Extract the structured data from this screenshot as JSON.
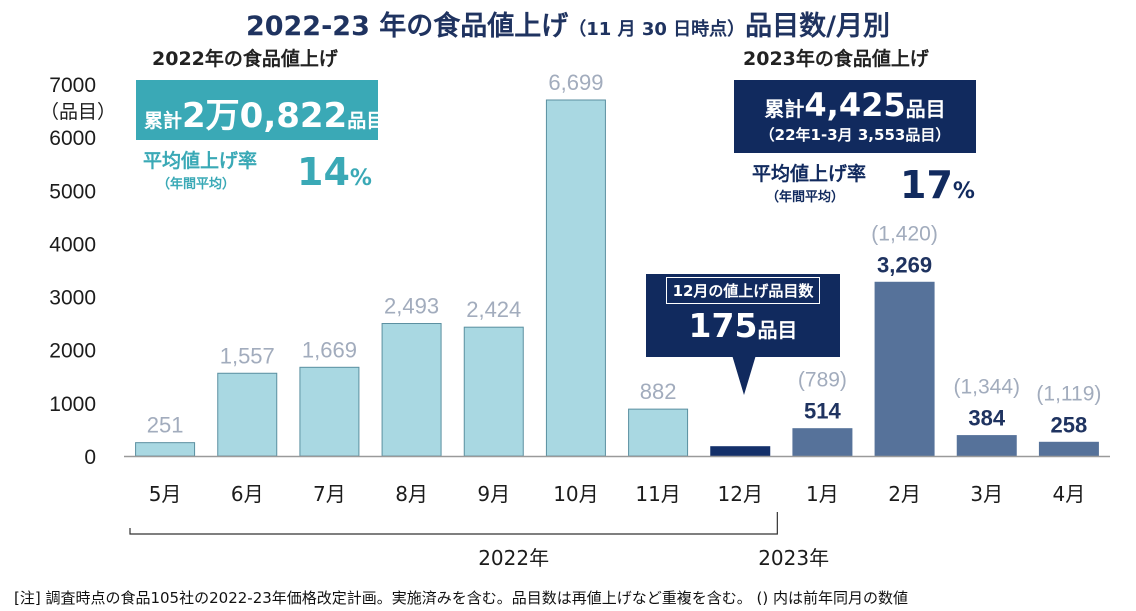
{
  "title_main": "2022-23 年の食品値上げ",
  "title_date": "（11 月 30 日時点）",
  "title_tail": "品目数/月別",
  "subhead_2022": "2022年の食品値上げ",
  "subhead_2023": "2023年の食品値上げ",
  "summary_2022": {
    "prefix": "累計",
    "value": "2万0,822",
    "suffix": "品目",
    "rate_label": "平均値上げ率",
    "rate_sub": "（年間平均）",
    "rate_value": "14",
    "rate_unit": "%"
  },
  "summary_2023": {
    "prefix": "累計",
    "value": "4,425",
    "suffix": "品目",
    "note": "（22年1-3月 3,553品目）",
    "rate_label": "平均値上げ率",
    "rate_sub": "（年間平均）",
    "rate_value": "17",
    "rate_unit": "%"
  },
  "callout": {
    "heading": "12月の値上げ品目数",
    "value": "175",
    "unit": "品目"
  },
  "colors": {
    "bar_2022": "#a9d8e2",
    "bar_2022_stroke": "#5a8fa0",
    "bar_dec": "#14306a",
    "bar_2023": "#56729a",
    "label_2022": "#a2acbd",
    "label_2023": "#1f3360",
    "label_prev": "#a2acbd"
  },
  "chart_data": {
    "type": "bar",
    "ylabel": "（品目）",
    "ylim": [
      0,
      7000
    ],
    "yticks": [
      0,
      1000,
      2000,
      3000,
      4000,
      5000,
      6000,
      7000
    ],
    "categories": [
      "5月",
      "6月",
      "7月",
      "8月",
      "9月",
      "10月",
      "11月",
      "12月",
      "1月",
      "2月",
      "3月",
      "4月"
    ],
    "values": [
      251,
      1557,
      1669,
      2493,
      2424,
      6699,
      882,
      175,
      514,
      3269,
      384,
      258
    ],
    "value_labels": [
      "251",
      "1,557",
      "1,669",
      "2,493",
      "2,424",
      "6,699",
      "882",
      "",
      "514",
      "3,269",
      "384",
      "258"
    ],
    "previous_year_labels": [
      "",
      "",
      "",
      "",
      "",
      "",
      "",
      "",
      "(789)",
      "(1,420)",
      "(1,344)",
      "(1,119)"
    ],
    "groups": [
      {
        "label": "2022年",
        "from": 0,
        "to": 7
      },
      {
        "label": "2023年",
        "from": 8,
        "to": 11
      }
    ]
  },
  "footnote": "[注]  調査時点の食品105社の2022-23年価格改定計画。実施済みを含む。品目数は再値上げなど重複を含む。 () 内は前年同月の数値"
}
